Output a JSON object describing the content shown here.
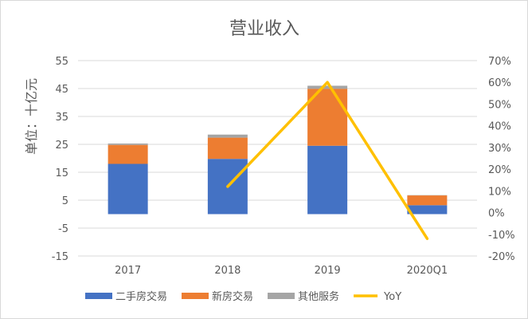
{
  "chart_data": {
    "type": "bar",
    "stacked": true,
    "title": "营业收入",
    "ylabel": "单位：十亿元",
    "categories": [
      "2017",
      "2018",
      "2019",
      "2020Q1"
    ],
    "series": [
      {
        "name": "二手房交易",
        "type": "bar",
        "color": "#4472C4",
        "values": [
          18.0,
          19.8,
          24.5,
          3.2
        ]
      },
      {
        "name": "新房交易",
        "type": "bar",
        "color": "#ED7D31",
        "values": [
          6.8,
          7.6,
          20.4,
          3.5
        ]
      },
      {
        "name": "其他服务",
        "type": "bar",
        "color": "#A5A5A5",
        "values": [
          0.5,
          1.1,
          1.1,
          0.1
        ]
      },
      {
        "name": "YoY",
        "type": "line",
        "axis": "secondary",
        "color": "#FFC000",
        "values": [
          null,
          0.12,
          0.6,
          -0.12
        ]
      }
    ],
    "ylim": [
      -15,
      55
    ],
    "yticks": [
      "55",
      "45",
      "35",
      "25",
      "15",
      "5",
      "-5",
      "-15"
    ],
    "y2lim": [
      -0.2,
      0.7
    ],
    "y2ticks": [
      "70%",
      "60%",
      "50%",
      "40%",
      "30%",
      "20%",
      "10%",
      "0%",
      "-10%",
      "-20%"
    ],
    "grid": true,
    "legend_position": "bottom"
  }
}
